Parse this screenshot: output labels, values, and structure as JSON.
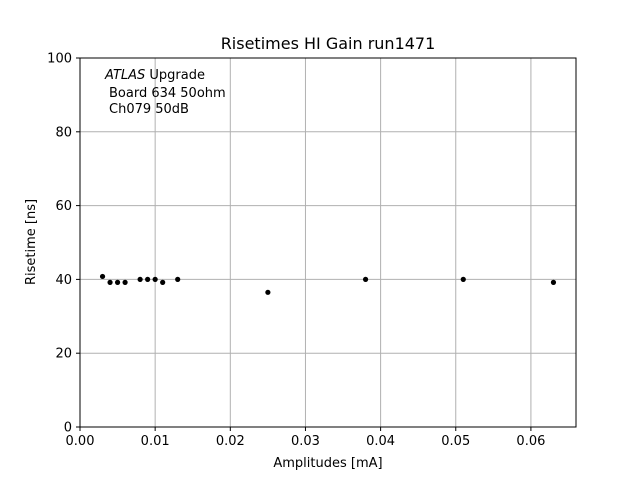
{
  "chart_data": {
    "type": "scatter",
    "title": "Risetimes HI Gain run1471",
    "xlabel": "Amplitudes [mA]",
    "ylabel": "Risetime [ns]",
    "xlim": [
      0.0,
      0.066
    ],
    "ylim": [
      0,
      100
    ],
    "xticks": [
      "0.00",
      "0.01",
      "0.02",
      "0.03",
      "0.04",
      "0.05",
      "0.06"
    ],
    "yticks": [
      "0",
      "20",
      "40",
      "60",
      "80",
      "100"
    ],
    "grid": true,
    "marker_color": "#000000",
    "grid_color": "#b0b0b0",
    "annotation": {
      "brand_italic": "ATLAS",
      "line1_rest": " Upgrade",
      "line2": "Board 634 50ohm",
      "line3": "Ch079 50dB"
    },
    "series": [
      {
        "x": [
          0.003,
          0.004,
          0.005,
          0.006,
          0.008,
          0.009,
          0.01,
          0.011,
          0.013,
          0.025,
          0.038,
          0.051,
          0.063
        ],
        "y": [
          40.8,
          39.2,
          39.2,
          39.2,
          40.0,
          40.0,
          40.0,
          39.2,
          40.0,
          36.5,
          40.0,
          40.0,
          39.2
        ]
      }
    ]
  }
}
